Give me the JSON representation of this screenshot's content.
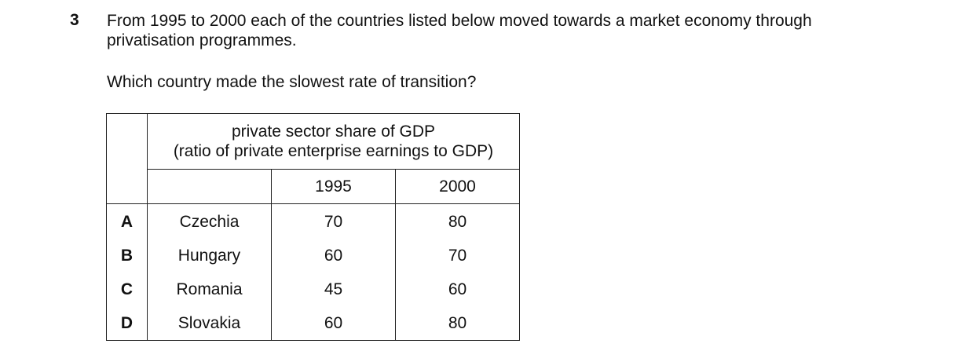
{
  "question": {
    "number": "3",
    "stem_line1": "From 1995 to 2000 each of the countries listed below moved towards a market economy through",
    "stem_line2": "privatisation programmes.",
    "prompt": "Which country made the slowest rate of transition?"
  },
  "table": {
    "header_line1": "private sector share of GDP",
    "header_line2": "(ratio of private enterprise earnings to GDP)",
    "years": [
      "1995",
      "2000"
    ],
    "rows": [
      {
        "option": "A",
        "country": "Czechia",
        "y1995": "70",
        "y2000": "80"
      },
      {
        "option": "B",
        "country": "Hungary",
        "y1995": "60",
        "y2000": "70"
      },
      {
        "option": "C",
        "country": "Romania",
        "y1995": "45",
        "y2000": "60"
      },
      {
        "option": "D",
        "country": "Slovakia",
        "y1995": "60",
        "y2000": "80"
      }
    ]
  }
}
